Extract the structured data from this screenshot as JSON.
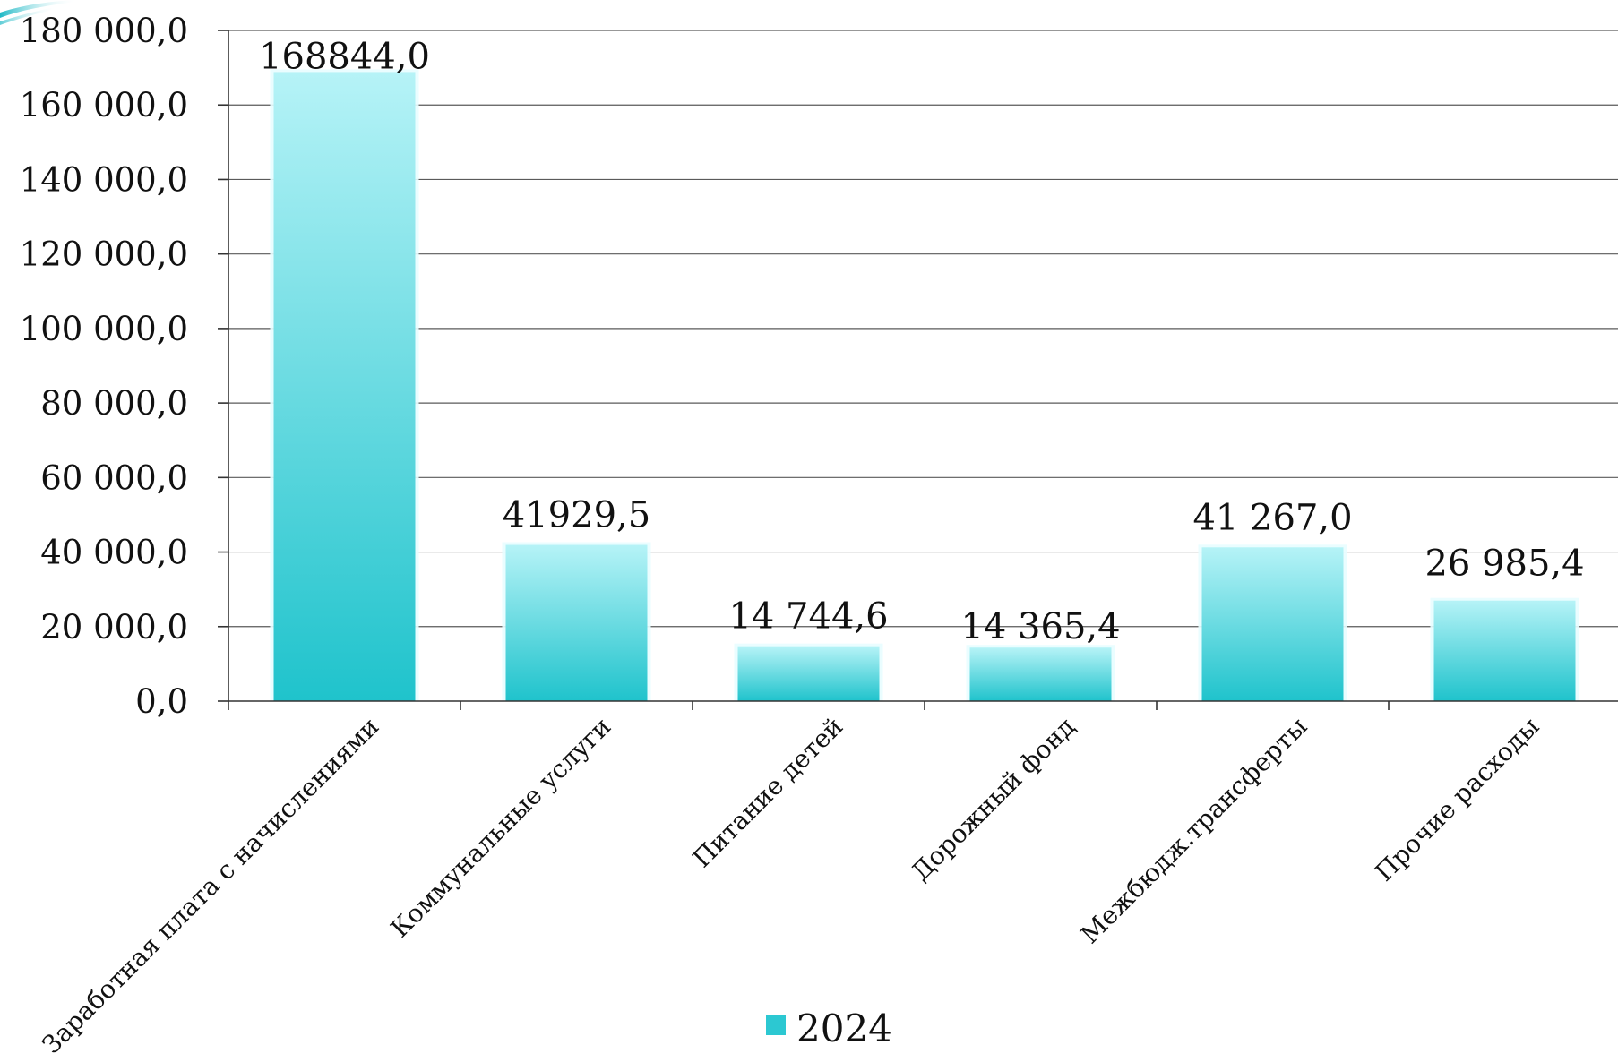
{
  "chart_data": {
    "type": "bar",
    "categories": [
      "Заработная плата с начислениями",
      "Коммунальные услуги",
      "Питание детей",
      "Дорожный фонд",
      "Межбюдж.трансферты",
      "Прочие расходы"
    ],
    "series": [
      {
        "name": "2024",
        "values": [
          168844.0,
          41929.5,
          14744.6,
          14365.4,
          41267.0,
          26985.4
        ],
        "labels": [
          "168844,0",
          "41929,5",
          "14 744,6",
          "14 365,4",
          "41 267,0",
          "26 985,4"
        ]
      }
    ],
    "ylim": [
      0,
      180000
    ],
    "yticks": [
      0,
      20000,
      40000,
      60000,
      80000,
      100000,
      120000,
      140000,
      160000,
      180000
    ],
    "ytick_labels": [
      "0,0",
      "20 000,0",
      "40 000,0",
      "60 000,0",
      "80 000,0",
      "100 000,0",
      "120 000,0",
      "140 000,0",
      "160 000,0",
      "180 000,0"
    ],
    "title": "",
    "xlabel": "",
    "ylabel": "",
    "grid": true,
    "legend": {
      "position": "bottom",
      "entries": [
        "2024"
      ]
    },
    "colors": {
      "bar_top": "#b6f3f7",
      "bar_bottom": "#1fc3cc",
      "bar_edge": "#e8fdff",
      "legend_swatch": "#2cc8d2"
    }
  }
}
